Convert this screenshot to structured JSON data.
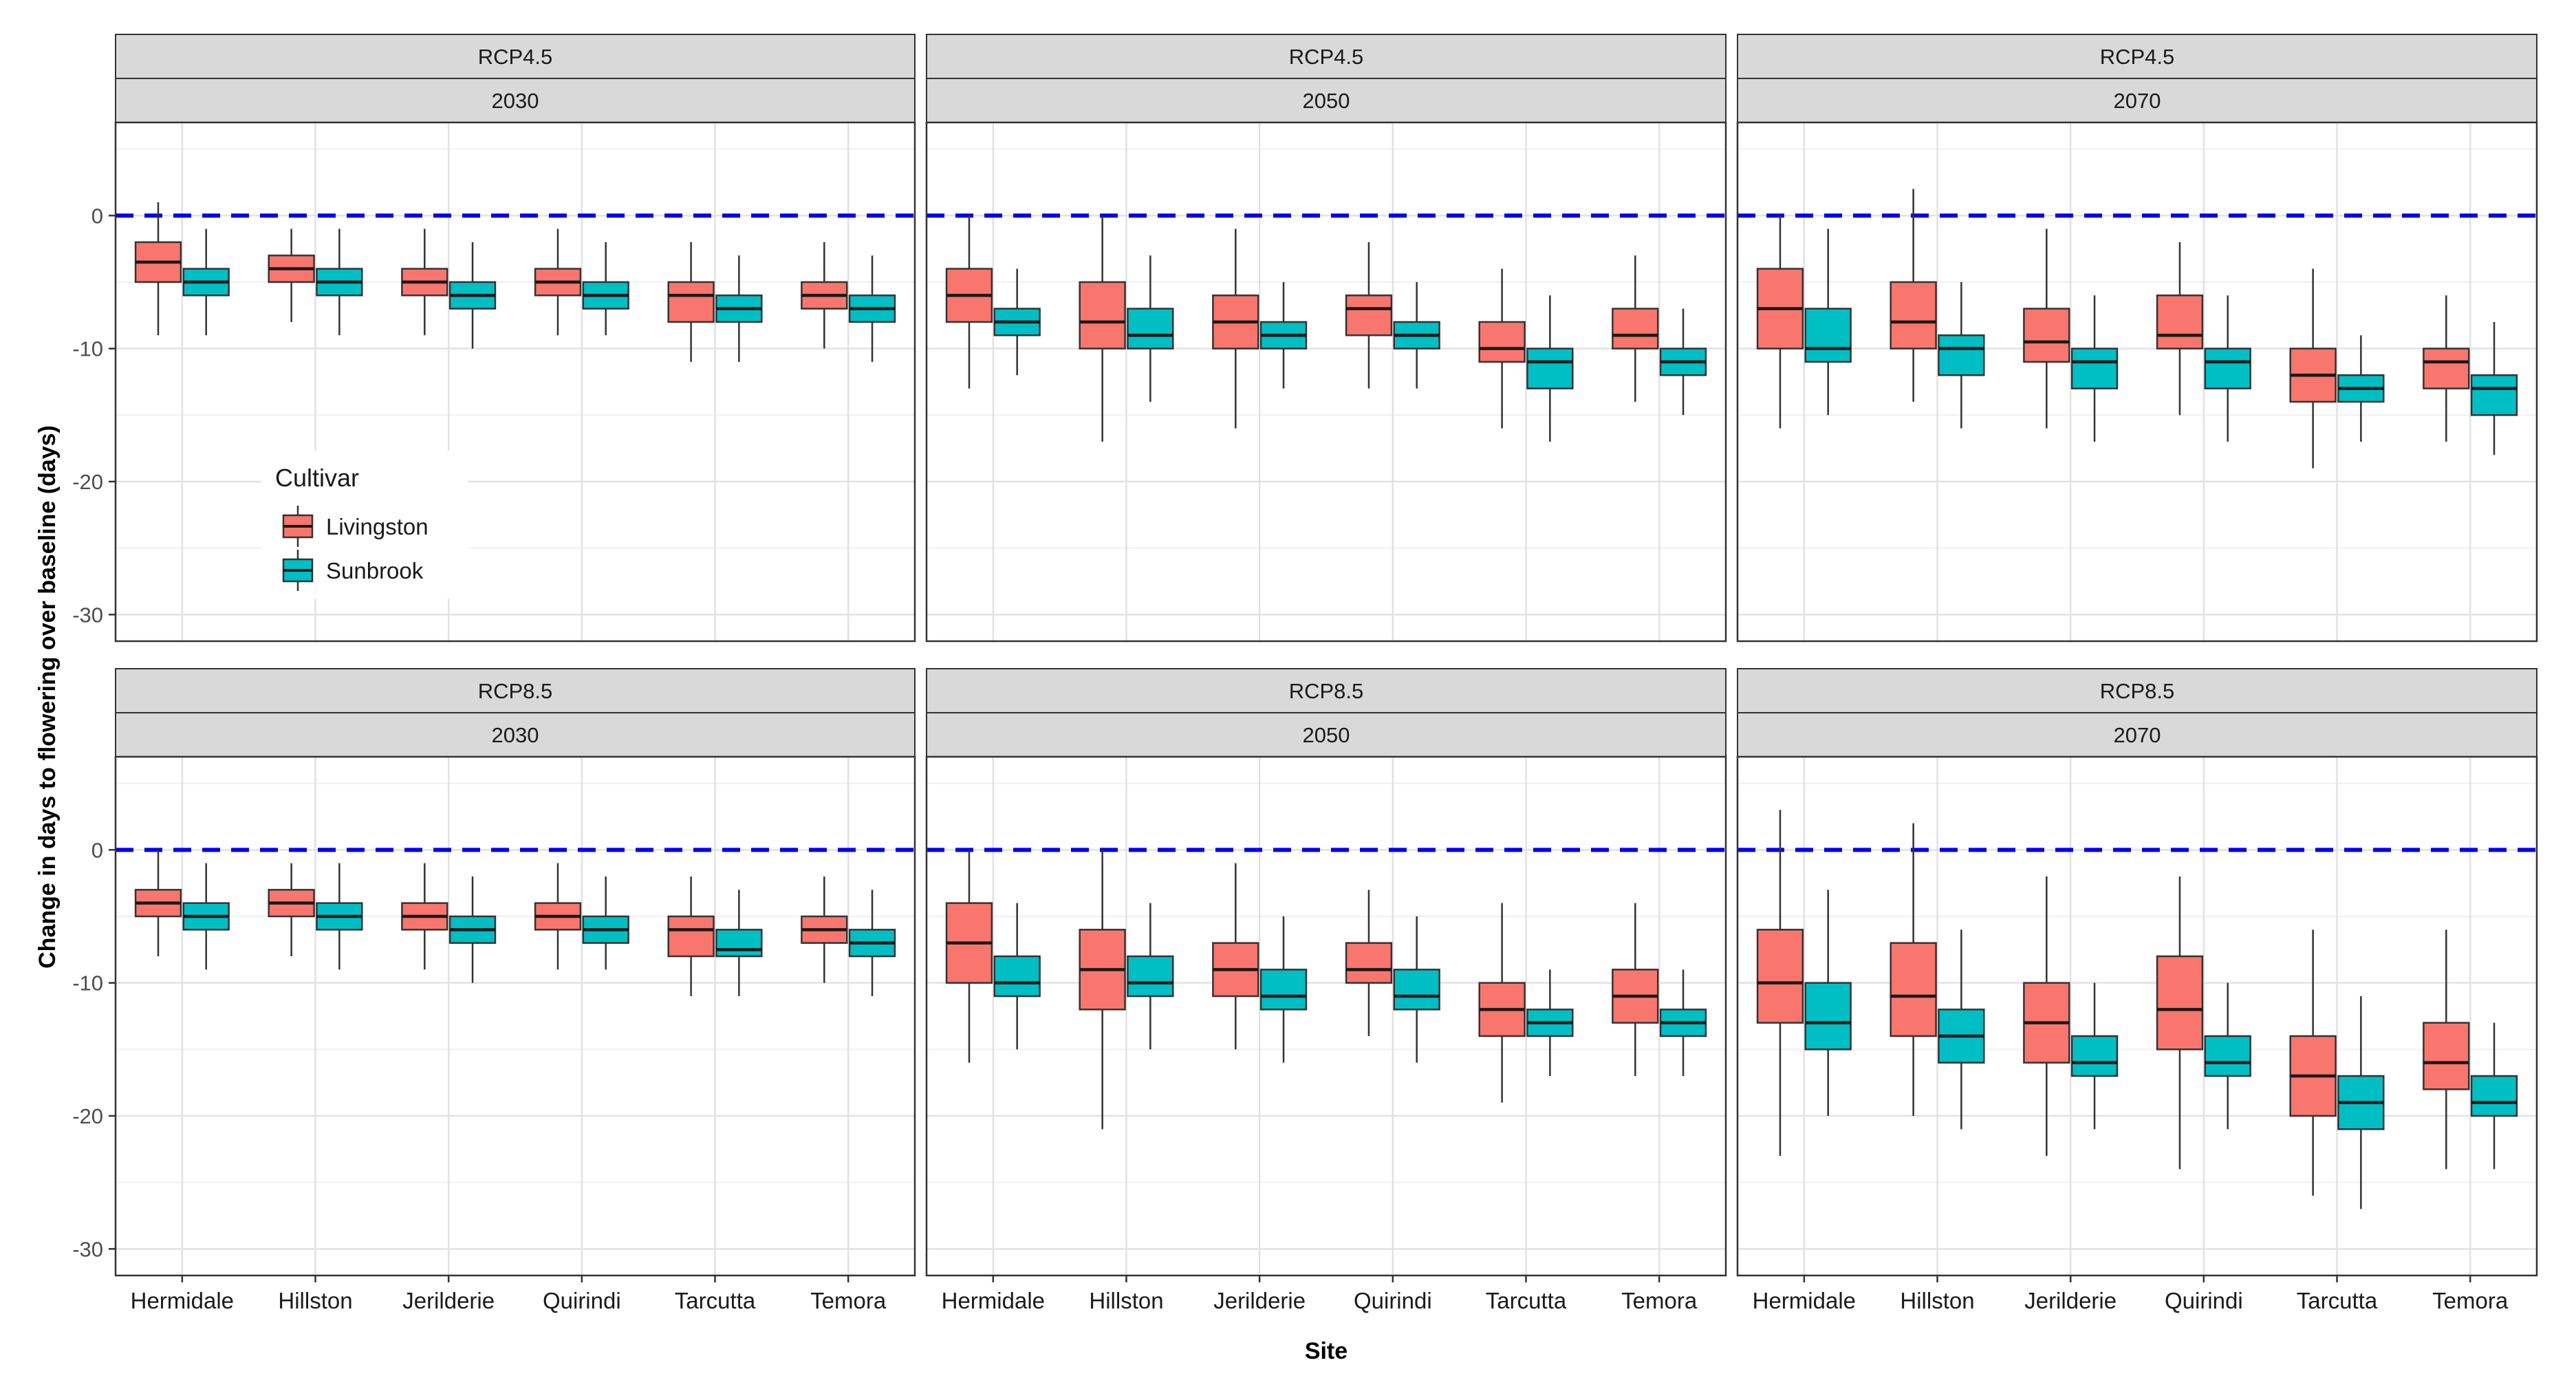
{
  "chart_data": {
    "type": "boxplot",
    "ylabel": "Change in days to flowering over baseline (days)",
    "xlabel": "Site",
    "ylim": [
      -32,
      7
    ],
    "y_ticks": [
      0,
      -10,
      -20,
      -30
    ],
    "y_tick_labels": [
      "0",
      "-10",
      "-20",
      "-30"
    ],
    "reference_line": {
      "y": 0,
      "style": "dashed",
      "color": "#0000ee"
    },
    "sites": [
      "Hermidale",
      "Hillston",
      "Jerilderie",
      "Quirindi",
      "Tarcutta",
      "Temora"
    ],
    "legend": {
      "title": "Cultivar",
      "position": "inside top-left panel, lower left",
      "items": [
        {
          "name": "Livingston",
          "color": "#f8766d"
        },
        {
          "name": "Sunbrook",
          "color": "#00bfc4"
        }
      ]
    },
    "panels": [
      {
        "scenario": "RCP4.5",
        "year": "2030",
        "series": [
          {
            "name": "Livingston",
            "boxes": [
              {
                "site": "Hermidale",
                "min": -9,
                "q1": -5,
                "median": -3.5,
                "q3": -2,
                "max": 1
              },
              {
                "site": "Hillston",
                "min": -8,
                "q1": -5,
                "median": -4,
                "q3": -3,
                "max": -1
              },
              {
                "site": "Jerilderie",
                "min": -9,
                "q1": -6,
                "median": -5,
                "q3": -4,
                "max": -1
              },
              {
                "site": "Quirindi",
                "min": -9,
                "q1": -6,
                "median": -5,
                "q3": -4,
                "max": -1
              },
              {
                "site": "Tarcutta",
                "min": -11,
                "q1": -8,
                "median": -6,
                "q3": -5,
                "max": -2
              },
              {
                "site": "Temora",
                "min": -10,
                "q1": -7,
                "median": -6,
                "q3": -5,
                "max": -2
              }
            ]
          },
          {
            "name": "Sunbrook",
            "boxes": [
              {
                "site": "Hermidale",
                "min": -9,
                "q1": -6,
                "median": -5,
                "q3": -4,
                "max": -1
              },
              {
                "site": "Hillston",
                "min": -9,
                "q1": -6,
                "median": -5,
                "q3": -4,
                "max": -1
              },
              {
                "site": "Jerilderie",
                "min": -10,
                "q1": -7,
                "median": -6,
                "q3": -5,
                "max": -2
              },
              {
                "site": "Quirindi",
                "min": -9,
                "q1": -7,
                "median": -6,
                "q3": -5,
                "max": -2
              },
              {
                "site": "Tarcutta",
                "min": -11,
                "q1": -8,
                "median": -7,
                "q3": -6,
                "max": -3
              },
              {
                "site": "Temora",
                "min": -11,
                "q1": -8,
                "median": -7,
                "q3": -6,
                "max": -3
              }
            ]
          }
        ]
      },
      {
        "scenario": "RCP4.5",
        "year": "2050",
        "series": [
          {
            "name": "Livingston",
            "boxes": [
              {
                "site": "Hermidale",
                "min": -13,
                "q1": -8,
                "median": -6,
                "q3": -4,
                "max": 0
              },
              {
                "site": "Hillston",
                "min": -17,
                "q1": -10,
                "median": -8,
                "q3": -5,
                "max": 0
              },
              {
                "site": "Jerilderie",
                "min": -16,
                "q1": -10,
                "median": -8,
                "q3": -6,
                "max": -1
              },
              {
                "site": "Quirindi",
                "min": -13,
                "q1": -9,
                "median": -7,
                "q3": -6,
                "max": -2
              },
              {
                "site": "Tarcutta",
                "min": -16,
                "q1": -11,
                "median": -10,
                "q3": -8,
                "max": -4
              },
              {
                "site": "Temora",
                "min": -14,
                "q1": -10,
                "median": -9,
                "q3": -7,
                "max": -3
              }
            ]
          },
          {
            "name": "Sunbrook",
            "boxes": [
              {
                "site": "Hermidale",
                "min": -12,
                "q1": -9,
                "median": -8,
                "q3": -7,
                "max": -4
              },
              {
                "site": "Hillston",
                "min": -14,
                "q1": -10,
                "median": -9,
                "q3": -7,
                "max": -3
              },
              {
                "site": "Jerilderie",
                "min": -13,
                "q1": -10,
                "median": -9,
                "q3": -8,
                "max": -5
              },
              {
                "site": "Quirindi",
                "min": -13,
                "q1": -10,
                "median": -9,
                "q3": -8,
                "max": -5
              },
              {
                "site": "Tarcutta",
                "min": -17,
                "q1": -13,
                "median": -11,
                "q3": -10,
                "max": -6
              },
              {
                "site": "Temora",
                "min": -15,
                "q1": -12,
                "median": -11,
                "q3": -10,
                "max": -7
              }
            ]
          }
        ]
      },
      {
        "scenario": "RCP4.5",
        "year": "2070",
        "series": [
          {
            "name": "Livingston",
            "boxes": [
              {
                "site": "Hermidale",
                "min": -16,
                "q1": -10,
                "median": -7,
                "q3": -4,
                "max": 0
              },
              {
                "site": "Hillston",
                "min": -14,
                "q1": -10,
                "median": -8,
                "q3": -5,
                "max": 2
              },
              {
                "site": "Jerilderie",
                "min": -16,
                "q1": -11,
                "median": -9.5,
                "q3": -7,
                "max": -1
              },
              {
                "site": "Quirindi",
                "min": -15,
                "q1": -10,
                "median": -9,
                "q3": -6,
                "max": -2
              },
              {
                "site": "Tarcutta",
                "min": -19,
                "q1": -14,
                "median": -12,
                "q3": -10,
                "max": -4
              },
              {
                "site": "Temora",
                "min": -17,
                "q1": -13,
                "median": -11,
                "q3": -10,
                "max": -6
              }
            ]
          },
          {
            "name": "Sunbrook",
            "boxes": [
              {
                "site": "Hermidale",
                "min": -15,
                "q1": -11,
                "median": -10,
                "q3": -7,
                "max": -1
              },
              {
                "site": "Hillston",
                "min": -16,
                "q1": -12,
                "median": -10,
                "q3": -9,
                "max": -5
              },
              {
                "site": "Jerilderie",
                "min": -17,
                "q1": -13,
                "median": -11,
                "q3": -10,
                "max": -6
              },
              {
                "site": "Quirindi",
                "min": -17,
                "q1": -13,
                "median": -11,
                "q3": -10,
                "max": -6
              },
              {
                "site": "Tarcutta",
                "min": -17,
                "q1": -14,
                "median": -13,
                "q3": -12,
                "max": -9
              },
              {
                "site": "Temora",
                "min": -18,
                "q1": -15,
                "median": -13,
                "q3": -12,
                "max": -8
              }
            ]
          }
        ]
      },
      {
        "scenario": "RCP8.5",
        "year": "2030",
        "series": [
          {
            "name": "Livingston",
            "boxes": [
              {
                "site": "Hermidale",
                "min": -8,
                "q1": -5,
                "median": -4,
                "q3": -3,
                "max": 0
              },
              {
                "site": "Hillston",
                "min": -8,
                "q1": -5,
                "median": -4,
                "q3": -3,
                "max": -1
              },
              {
                "site": "Jerilderie",
                "min": -9,
                "q1": -6,
                "median": -5,
                "q3": -4,
                "max": -1
              },
              {
                "site": "Quirindi",
                "min": -9,
                "q1": -6,
                "median": -5,
                "q3": -4,
                "max": -1
              },
              {
                "site": "Tarcutta",
                "min": -11,
                "q1": -8,
                "median": -6,
                "q3": -5,
                "max": -2
              },
              {
                "site": "Temora",
                "min": -10,
                "q1": -7,
                "median": -6,
                "q3": -5,
                "max": -2
              }
            ]
          },
          {
            "name": "Sunbrook",
            "boxes": [
              {
                "site": "Hermidale",
                "min": -9,
                "q1": -6,
                "median": -5,
                "q3": -4,
                "max": -1
              },
              {
                "site": "Hillston",
                "min": -9,
                "q1": -6,
                "median": -5,
                "q3": -4,
                "max": -1
              },
              {
                "site": "Jerilderie",
                "min": -10,
                "q1": -7,
                "median": -6,
                "q3": -5,
                "max": -2
              },
              {
                "site": "Quirindi",
                "min": -9,
                "q1": -7,
                "median": -6,
                "q3": -5,
                "max": -2
              },
              {
                "site": "Tarcutta",
                "min": -11,
                "q1": -8,
                "median": -7.5,
                "q3": -6,
                "max": -3
              },
              {
                "site": "Temora",
                "min": -11,
                "q1": -8,
                "median": -7,
                "q3": -6,
                "max": -3
              }
            ]
          }
        ]
      },
      {
        "scenario": "RCP8.5",
        "year": "2050",
        "series": [
          {
            "name": "Livingston",
            "boxes": [
              {
                "site": "Hermidale",
                "min": -16,
                "q1": -10,
                "median": -7,
                "q3": -4,
                "max": 0
              },
              {
                "site": "Hillston",
                "min": -21,
                "q1": -12,
                "median": -9,
                "q3": -6,
                "max": 0
              },
              {
                "site": "Jerilderie",
                "min": -15,
                "q1": -11,
                "median": -9,
                "q3": -7,
                "max": -1
              },
              {
                "site": "Quirindi",
                "min": -14,
                "q1": -10,
                "median": -9,
                "q3": -7,
                "max": -3
              },
              {
                "site": "Tarcutta",
                "min": -19,
                "q1": -14,
                "median": -12,
                "q3": -10,
                "max": -4
              },
              {
                "site": "Temora",
                "min": -17,
                "q1": -13,
                "median": -11,
                "q3": -9,
                "max": -4
              }
            ]
          },
          {
            "name": "Sunbrook",
            "boxes": [
              {
                "site": "Hermidale",
                "min": -15,
                "q1": -11,
                "median": -10,
                "q3": -8,
                "max": -4
              },
              {
                "site": "Hillston",
                "min": -15,
                "q1": -11,
                "median": -10,
                "q3": -8,
                "max": -4
              },
              {
                "site": "Jerilderie",
                "min": -16,
                "q1": -12,
                "median": -11,
                "q3": -9,
                "max": -5
              },
              {
                "site": "Quirindi",
                "min": -16,
                "q1": -12,
                "median": -11,
                "q3": -9,
                "max": -5
              },
              {
                "site": "Tarcutta",
                "min": -17,
                "q1": -14,
                "median": -13,
                "q3": -12,
                "max": -9
              },
              {
                "site": "Temora",
                "min": -17,
                "q1": -14,
                "median": -13,
                "q3": -12,
                "max": -9
              }
            ]
          }
        ]
      },
      {
        "scenario": "RCP8.5",
        "year": "2070",
        "series": [
          {
            "name": "Livingston",
            "boxes": [
              {
                "site": "Hermidale",
                "min": -23,
                "q1": -13,
                "median": -10,
                "q3": -6,
                "max": 3
              },
              {
                "site": "Hillston",
                "min": -20,
                "q1": -14,
                "median": -11,
                "q3": -7,
                "max": 2
              },
              {
                "site": "Jerilderie",
                "min": -23,
                "q1": -16,
                "median": -13,
                "q3": -10,
                "max": -2
              },
              {
                "site": "Quirindi",
                "min": -24,
                "q1": -15,
                "median": -12,
                "q3": -8,
                "max": -2
              },
              {
                "site": "Tarcutta",
                "min": -26,
                "q1": -20,
                "median": -17,
                "q3": -14,
                "max": -6
              },
              {
                "site": "Temora",
                "min": -24,
                "q1": -18,
                "median": -16,
                "q3": -13,
                "max": -6
              }
            ]
          },
          {
            "name": "Sunbrook",
            "boxes": [
              {
                "site": "Hermidale",
                "min": -20,
                "q1": -15,
                "median": -13,
                "q3": -10,
                "max": -3
              },
              {
                "site": "Hillston",
                "min": -21,
                "q1": -16,
                "median": -14,
                "q3": -12,
                "max": -6
              },
              {
                "site": "Jerilderie",
                "min": -21,
                "q1": -17,
                "median": -16,
                "q3": -14,
                "max": -10
              },
              {
                "site": "Quirindi",
                "min": -21,
                "q1": -17,
                "median": -16,
                "q3": -14,
                "max": -10
              },
              {
                "site": "Tarcutta",
                "min": -27,
                "q1": -21,
                "median": -19,
                "q3": -17,
                "max": -11
              },
              {
                "site": "Temora",
                "min": -24,
                "q1": -20,
                "median": -19,
                "q3": -17,
                "max": -13
              }
            ]
          }
        ]
      }
    ]
  }
}
